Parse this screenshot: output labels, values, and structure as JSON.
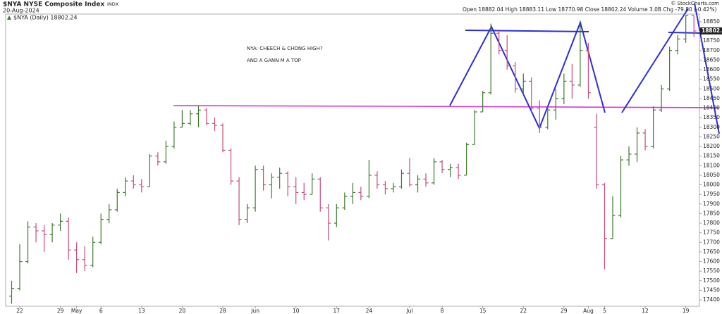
{
  "chart_data": {
    "type": "ohlc",
    "title": "$NYA NYSE Composite Index",
    "exchange": "INDX",
    "date": "20-Aug-2024",
    "legend": "$NYA (Daily) 18802.24",
    "info": "Open 18882.04 High 18883.11 Low 18770.98 Close 18802.24 Volume 3.0B Chg -79.80 (-0.42%)",
    "credit": "© StockCharts.com",
    "annotations": [
      "NYA: CHEECH & CHONG HIGH?",
      "AND A GANN M  A TOP"
    ],
    "last_price": 18802.24,
    "up_color": "#3d7a2f",
    "down_color": "#c94b7c",
    "grid": false,
    "ylim": [
      17367,
      18890
    ],
    "yticks": [
      17400,
      17450,
      17500,
      17550,
      17600,
      17650,
      17700,
      17750,
      17800,
      17850,
      17900,
      17950,
      18000,
      18050,
      18100,
      18150,
      18200,
      18250,
      18300,
      18350,
      18400,
      18450,
      18500,
      18550,
      18600,
      18650,
      18700,
      18750,
      18800,
      18850
    ],
    "categories": [
      null,
      "22",
      null,
      null,
      null,
      null,
      "29",
      null,
      "May",
      null,
      null,
      "6",
      null,
      null,
      null,
      null,
      "13",
      null,
      null,
      null,
      null,
      "20",
      null,
      null,
      null,
      null,
      "28",
      null,
      null,
      null,
      "Jun",
      null,
      null,
      null,
      null,
      "10",
      null,
      null,
      null,
      null,
      "17",
      null,
      null,
      null,
      "24",
      null,
      null,
      null,
      null,
      "Jul",
      null,
      null,
      null,
      "8",
      null,
      null,
      null,
      null,
      "15",
      null,
      null,
      null,
      null,
      "22",
      null,
      null,
      null,
      null,
      "29",
      null,
      null,
      "Aug",
      null,
      "5",
      null,
      null,
      null,
      null,
      "12",
      null,
      null,
      null,
      null,
      "19",
      null
    ],
    "open": [
      17420,
      17460,
      17600,
      17780,
      17760,
      17740,
      17790,
      17810,
      17660,
      17610,
      17580,
      17700,
      17820,
      17870,
      17960,
      18020,
      18000,
      17990,
      18150,
      18120,
      18200,
      18300,
      18320,
      18370,
      18390,
      18320,
      18310,
      18180,
      18020,
      17820,
      17880,
      18080,
      18000,
      18040,
      18060,
      17990,
      17960,
      17950,
      18030,
      17880,
      17800,
      17880,
      17940,
      17960,
      17940,
      18050,
      18000,
      17980,
      17990,
      18060,
      18000,
      18030,
      18010,
      18120,
      18080,
      18090,
      18050,
      18210,
      18380,
      18480,
      18790,
      18700,
      18620,
      18500,
      18540,
      18400,
      18300,
      18390,
      18450,
      18540,
      18520,
      18700,
      18300,
      18000,
      17720,
      17840,
      18130,
      18160,
      18270,
      18200,
      18390,
      18500,
      18700,
      18760,
      18882.04
    ],
    "high": [
      17500,
      17690,
      17810,
      17800,
      17790,
      17800,
      17850,
      17830,
      17700,
      17680,
      17730,
      17850,
      17900,
      17980,
      18040,
      18050,
      18030,
      18160,
      18170,
      18230,
      18330,
      18390,
      18390,
      18410,
      18400,
      18350,
      18320,
      18190,
      18040,
      17900,
      18100,
      18100,
      18060,
      18090,
      18070,
      18040,
      18010,
      18060,
      18040,
      17900,
      17900,
      17960,
      18010,
      17990,
      18130,
      18070,
      18020,
      18010,
      18080,
      18140,
      18050,
      18060,
      18140,
      18130,
      18110,
      18110,
      18220,
      18390,
      18490,
      18840,
      18810,
      18780,
      18640,
      18580,
      18560,
      18440,
      18410,
      18500,
      18580,
      18630,
      18840,
      18740,
      18370,
      18010,
      17940,
      18150,
      18200,
      18300,
      18290,
      18410,
      18520,
      18720,
      18780,
      18885,
      18883.11
    ],
    "low": [
      17380,
      17450,
      17590,
      17700,
      17650,
      17700,
      17760,
      17610,
      17540,
      17550,
      17570,
      17690,
      17800,
      17860,
      17940,
      17980,
      17960,
      17990,
      18100,
      18110,
      18190,
      18300,
      18310,
      18300,
      18310,
      18280,
      18170,
      18000,
      17790,
      17800,
      17860,
      17970,
      17930,
      17980,
      17940,
      17900,
      17920,
      17950,
      17860,
      17710,
      17780,
      17870,
      17900,
      17920,
      17930,
      17980,
      17950,
      17960,
      17980,
      17990,
      17960,
      17990,
      18000,
      18060,
      18040,
      18030,
      18050,
      18210,
      18380,
      18470,
      18680,
      18600,
      18480,
      18470,
      18380,
      18270,
      18290,
      18340,
      18420,
      18450,
      18510,
      18450,
      17980,
      17560,
      17720,
      17830,
      18100,
      18120,
      18180,
      18190,
      18380,
      18490,
      18680,
      18740,
      18770.98
    ],
    "close": [
      17460,
      17600,
      17780,
      17760,
      17740,
      17790,
      17810,
      17660,
      17610,
      17580,
      17700,
      17820,
      17870,
      17960,
      18020,
      18000,
      17990,
      18150,
      18120,
      18200,
      18300,
      18320,
      18370,
      18390,
      18320,
      18310,
      18180,
      18020,
      17820,
      17880,
      18080,
      18000,
      18040,
      18060,
      17990,
      17960,
      17950,
      18030,
      17880,
      17800,
      17880,
      17940,
      17960,
      17940,
      18050,
      18000,
      17980,
      17990,
      18060,
      18000,
      18030,
      18010,
      18120,
      18080,
      18090,
      18050,
      18210,
      18380,
      18480,
      18790,
      18700,
      18620,
      18500,
      18540,
      18400,
      18300,
      18390,
      18450,
      18540,
      18520,
      18700,
      18480,
      18000,
      17720,
      17840,
      18130,
      18160,
      18270,
      18200,
      18390,
      18500,
      18700,
      18760,
      18882.04,
      18802.24
    ]
  }
}
